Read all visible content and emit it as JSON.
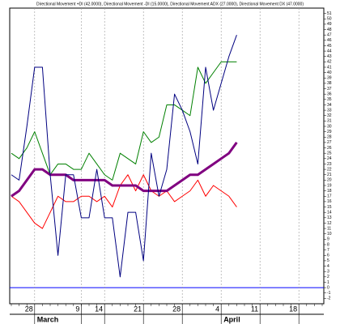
{
  "chart_data": {
    "type": "line",
    "title": "Directional Movement +DI (42.0000), Directional Movement -DI (15.0000), Directional Movement ADX (27.0000), Directional Movement DX (47.0000)",
    "categories": [
      null,
      null,
      null,
      "28",
      null,
      null,
      null,
      null,
      null,
      "9",
      null,
      null,
      "14",
      null,
      null,
      null,
      null,
      "21",
      null,
      null,
      null,
      null,
      "28",
      null,
      null,
      null,
      null,
      "4",
      null,
      null,
      null,
      null,
      "11",
      null,
      null,
      null,
      null,
      "18",
      null,
      null,
      null
    ],
    "months": [
      null,
      null,
      null,
      "March",
      null,
      null,
      null,
      null,
      null,
      null,
      null,
      null,
      null,
      null,
      null,
      null,
      null,
      null,
      null,
      null,
      null,
      null,
      null,
      null,
      null,
      null,
      null,
      "April",
      null,
      null,
      null,
      null,
      null,
      null,
      null,
      null,
      null,
      null,
      null,
      null,
      null
    ],
    "series": [
      {
        "name": "+DI",
        "color": "#008000",
        "width": 1,
        "values": [
          25,
          24,
          26,
          29,
          25,
          21,
          23,
          23,
          22,
          22,
          25,
          23,
          21,
          20,
          25,
          24,
          23,
          29,
          27,
          28,
          34,
          34,
          33,
          32,
          41,
          38,
          40,
          42,
          42,
          42,
          null,
          null,
          null,
          null,
          null,
          null,
          null,
          null,
          null,
          null,
          null
        ]
      },
      {
        "name": "-DI",
        "color": "#ff0000",
        "width": 1,
        "values": [
          17,
          16,
          14,
          12,
          11,
          14,
          17,
          16,
          16,
          17,
          17,
          16,
          17,
          15,
          19,
          21,
          18,
          21,
          18,
          17,
          18,
          16,
          17,
          18,
          20,
          17,
          19,
          18,
          17,
          15,
          null,
          null,
          null,
          null,
          null,
          null,
          null,
          null,
          null,
          null,
          null
        ]
      },
      {
        "name": "ADX",
        "color": "#800080",
        "width": 3,
        "values": [
          17,
          18,
          20,
          22,
          22,
          21,
          21,
          21,
          20,
          20,
          20,
          20,
          20,
          19,
          19,
          19,
          19,
          18,
          18,
          18,
          18,
          19,
          20,
          21,
          21,
          22,
          23,
          24,
          25,
          27,
          null,
          null,
          null,
          null,
          null,
          null,
          null,
          null,
          null,
          null,
          null
        ]
      },
      {
        "name": "DX",
        "color": "#000080",
        "width": 1,
        "values": [
          21,
          20,
          30,
          41,
          41,
          21,
          6,
          21,
          21,
          13,
          13,
          22,
          13,
          13,
          2,
          14,
          14,
          5,
          25,
          17,
          22,
          36,
          33,
          29,
          23,
          41,
          33,
          38,
          43,
          47,
          null,
          null,
          null,
          null,
          null,
          null,
          null,
          null,
          null,
          null,
          null
        ]
      }
    ],
    "ylim": [
      -3,
      52
    ],
    "yticks": [
      -2,
      -1,
      0,
      1,
      2,
      3,
      4,
      5,
      6,
      7,
      8,
      9,
      10,
      11,
      12,
      13,
      14,
      15,
      16,
      17,
      18,
      19,
      20,
      21,
      22,
      23,
      24,
      25,
      26,
      27,
      28,
      29,
      30,
      31,
      32,
      33,
      34,
      35,
      36,
      37,
      38,
      39,
      40,
      41,
      42,
      43,
      44,
      45,
      46,
      47,
      48,
      49,
      50,
      51
    ],
    "zero_line_color": "#0000ff",
    "grid": true
  }
}
